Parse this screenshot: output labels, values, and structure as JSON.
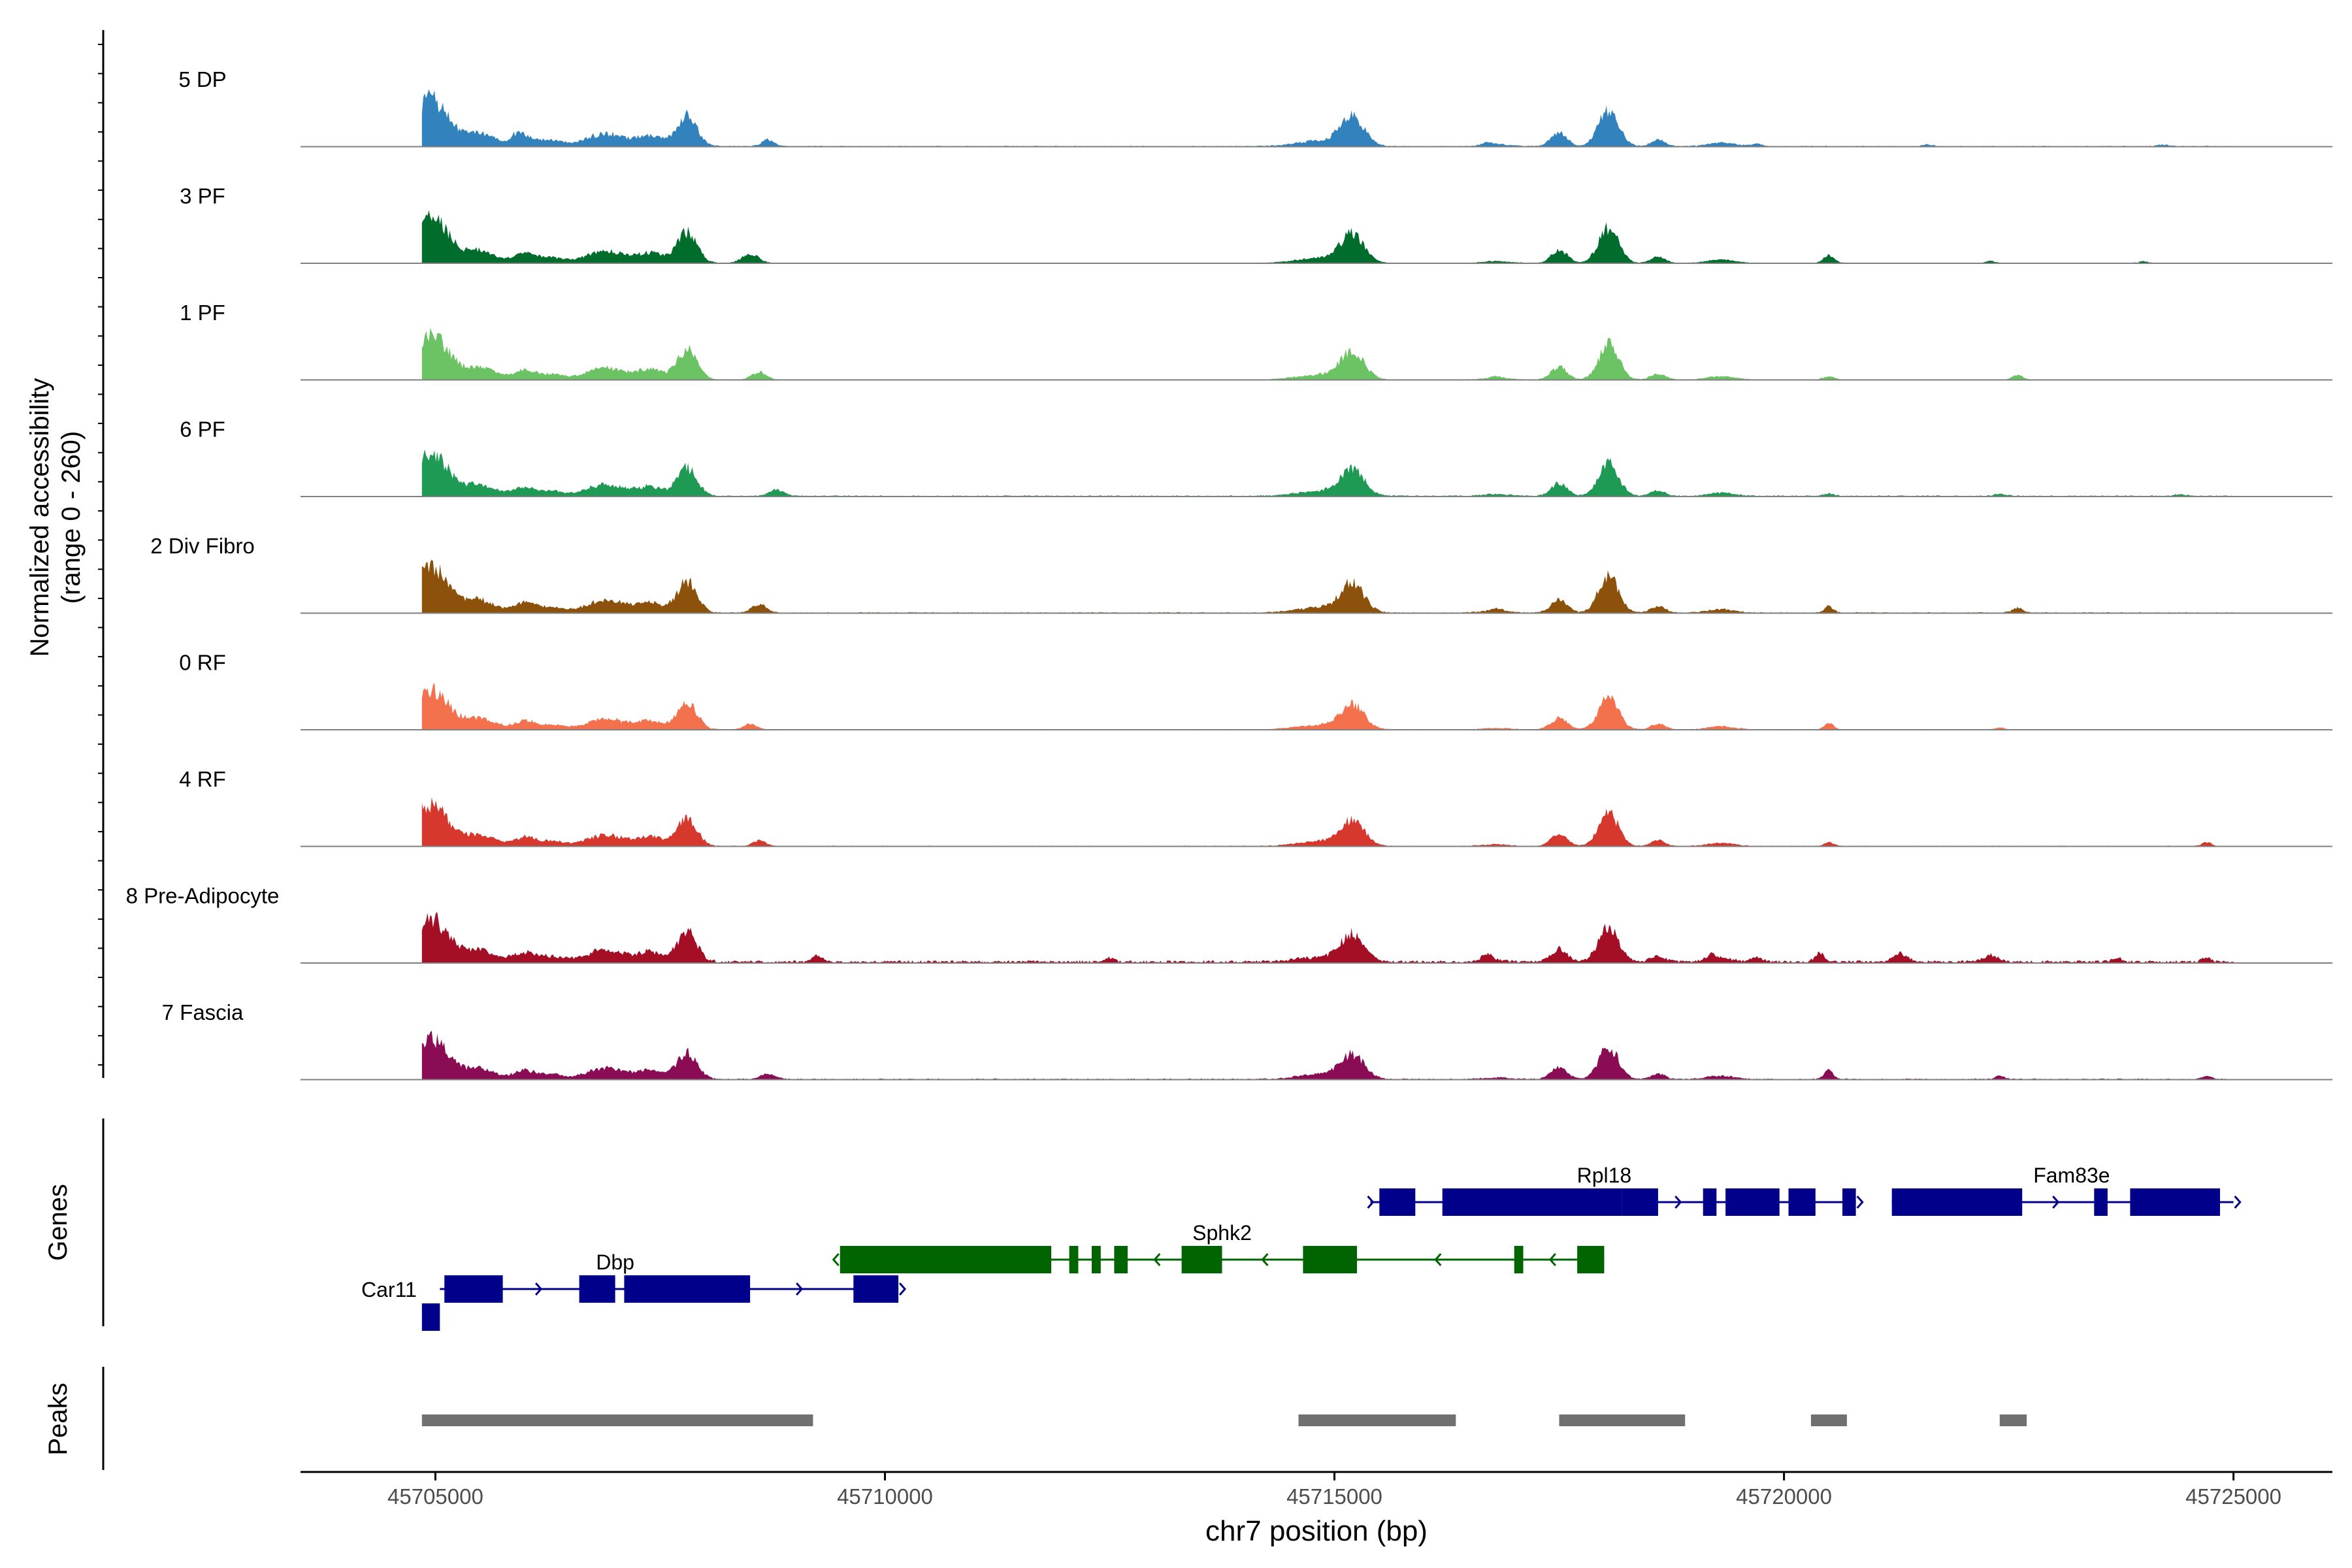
{
  "chart_data": {
    "type": "area",
    "title": "",
    "chromosome": "chr7",
    "xlabel": "chr7 position (bp)",
    "ylabel_line1": "Normalized accessibility",
    "ylabel_line2": "(range 0 - 260)",
    "y_range": [
      0,
      260
    ],
    "xlim": [
      45703500,
      45726100
    ],
    "x_ticks": [
      45705000,
      45710000,
      45715000,
      45720000,
      45725000
    ],
    "x_tick_labels": [
      "45705000",
      "45710000",
      "45715000",
      "45720000",
      "45725000"
    ],
    "track_start": 45704850,
    "track_end": 45725000,
    "tracks": [
      {
        "name": "5 DP",
        "color": "#3182BD",
        "scale": 1.0,
        "noise": 0.55,
        "extra": [
          [
            45708700,
            14,
            70
          ],
          [
            45705900,
            12,
            60
          ],
          [
            45716700,
            6,
            60
          ],
          [
            45719700,
            5,
            60
          ],
          [
            45721600,
            4,
            60
          ],
          [
            45724200,
            4,
            60
          ]
        ]
      },
      {
        "name": "3 PF",
        "color": "#006D2C",
        "scale": 0.97,
        "noise": 0.35,
        "extra": [
          [
            45708500,
            22,
            90
          ],
          [
            45720500,
            18,
            60
          ],
          [
            45722300,
            5,
            50
          ],
          [
            45724000,
            4,
            50
          ]
        ]
      },
      {
        "name": "1 PF",
        "color": "#6BC363",
        "scale": 0.96,
        "noise": 0.35,
        "extra": [
          [
            45708600,
            18,
            80
          ],
          [
            45720500,
            8,
            60
          ],
          [
            45722600,
            10,
            60
          ],
          [
            45716800,
            4,
            60
          ]
        ]
      },
      {
        "name": "6 PF",
        "color": "#1F9A54",
        "scale": 0.9,
        "noise": 0.7,
        "extra": [
          [
            45708800,
            16,
            80
          ],
          [
            45720500,
            6,
            60
          ],
          [
            45722400,
            6,
            60
          ],
          [
            45724400,
            5,
            60
          ]
        ]
      },
      {
        "name": "2 Div Fibro",
        "color": "#8C510A",
        "scale": 1.0,
        "noise": 0.6,
        "extra": [
          [
            45708600,
            18,
            80
          ],
          [
            45720500,
            14,
            50
          ],
          [
            45722600,
            10,
            60
          ],
          [
            45716800,
            6,
            60
          ]
        ]
      },
      {
        "name": "0 RF",
        "color": "#F4714E",
        "scale": 0.85,
        "noise": 0.4,
        "extra": [
          [
            45708500,
            14,
            70
          ],
          [
            45720500,
            18,
            50
          ],
          [
            45722400,
            5,
            50
          ]
        ]
      },
      {
        "name": "4 RF",
        "color": "#D6382E",
        "scale": 0.88,
        "noise": 0.45,
        "extra": [
          [
            45708600,
            14,
            70
          ],
          [
            45720500,
            10,
            50
          ],
          [
            45724700,
            10,
            50
          ]
        ]
      },
      {
        "name": "8 Pre-Adipocyte",
        "color": "#A50F26",
        "scale": 0.92,
        "noise": 1.5,
        "extra": [
          [
            45709250,
            16,
            60
          ],
          [
            45712500,
            10,
            50
          ],
          [
            45716700,
            16,
            60
          ],
          [
            45719200,
            12,
            60
          ],
          [
            45719700,
            12,
            60
          ],
          [
            45720400,
            24,
            50
          ],
          [
            45721300,
            20,
            80
          ],
          [
            45722300,
            16,
            80
          ],
          [
            45723700,
            12,
            50
          ],
          [
            45724700,
            10,
            50
          ]
        ]
      },
      {
        "name": "7 Fascia",
        "color": "#8A0C55",
        "scale": 0.85,
        "noise": 0.65,
        "extra": [
          [
            45708700,
            14,
            80
          ],
          [
            45720500,
            22,
            50
          ],
          [
            45722400,
            8,
            50
          ],
          [
            45724700,
            8,
            50
          ]
        ]
      }
    ],
    "profile_peaks": [
      [
        45704900,
        92,
        150
      ],
      [
        45705100,
        35,
        120
      ],
      [
        45705450,
        30,
        200
      ],
      [
        45706000,
        22,
        120
      ],
      [
        45706300,
        12,
        120
      ],
      [
        45706900,
        28,
        220
      ],
      [
        45707400,
        22,
        140
      ],
      [
        45707800,
        70,
        110
      ],
      [
        45715200,
        62,
        130
      ],
      [
        45714850,
        12,
        260
      ],
      [
        45716800,
        4,
        160
      ],
      [
        45717500,
        30,
        90
      ],
      [
        45718050,
        82,
        110
      ],
      [
        45718600,
        14,
        80
      ],
      [
        45719300,
        8,
        150
      ]
    ],
    "genes_label": "Genes",
    "genes": [
      {
        "name": "Car11",
        "color": "#00008B",
        "label": "Car11",
        "row": 3,
        "start": 45704850,
        "end": 45705050,
        "strand": "",
        "exons": [
          [
            45704850,
            45705050
          ]
        ]
      },
      {
        "name": "Dbp",
        "color": "#00008B",
        "label": "Dbp",
        "row": 2,
        "start": 45705050,
        "end": 45710150,
        "strand": "+",
        "exons": [
          [
            45705100,
            45705750
          ],
          [
            45706600,
            45707000
          ],
          [
            45707100,
            45708500
          ],
          [
            45709650,
            45710150
          ]
        ]
      },
      {
        "name": "Sphk2",
        "color": "#006400",
        "label": "Sphk2",
        "row": 1,
        "start": 45709500,
        "end": 45718000,
        "strand": "-",
        "exons": [
          [
            45709500,
            45711850
          ],
          [
            45712050,
            45712150
          ],
          [
            45712300,
            45712400
          ],
          [
            45712550,
            45712700
          ],
          [
            45713300,
            45713750
          ],
          [
            45714650,
            45715250
          ],
          [
            45717000,
            45717100
          ],
          [
            45717700,
            45718000
          ]
        ]
      },
      {
        "name": "Rpl18",
        "color": "#00008B",
        "label": "Rpl18",
        "row": 0,
        "start": 45715400,
        "end": 45720800,
        "strand": "+",
        "exons": [
          [
            45715500,
            45715900
          ],
          [
            45716200,
            45718200
          ],
          [
            45718200,
            45718600
          ],
          [
            45719100,
            45719250
          ],
          [
            45719350,
            45719950
          ],
          [
            45720050,
            45720350
          ],
          [
            45720650,
            45720800
          ]
        ]
      },
      {
        "name": "Fam83e",
        "color": "#00008B",
        "label": "Fam83e",
        "row": 0,
        "start": 45721200,
        "end": 45725000,
        "strand": "+",
        "exons": [
          [
            45721200,
            45722650
          ],
          [
            45723450,
            45723600
          ],
          [
            45723850,
            45724850
          ]
        ]
      }
    ],
    "peaks_label": "Peaks",
    "peaks_color": "#707070",
    "peaks": [
      [
        45704850,
        45709200
      ],
      [
        45714600,
        45716350
      ],
      [
        45717500,
        45718900
      ],
      [
        45720300,
        45720700
      ],
      [
        45722400,
        45722700
      ]
    ]
  }
}
